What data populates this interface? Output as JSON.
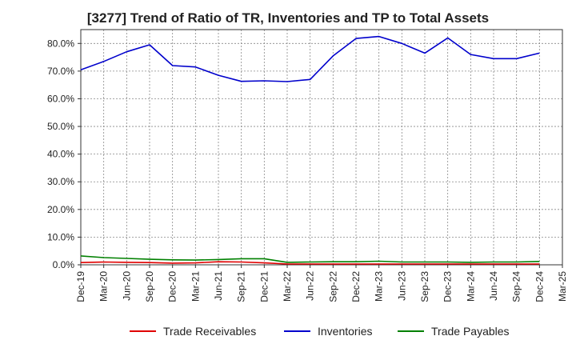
{
  "chart_data": {
    "type": "line",
    "title": "[3277]  Trend of Ratio of TR, Inventories and TP to Total Assets",
    "xlabel": "",
    "ylabel": "",
    "ylim": [
      0,
      85
    ],
    "y_ticks": [
      0,
      10,
      20,
      30,
      40,
      50,
      60,
      70,
      80
    ],
    "y_tick_labels": [
      "0.0%",
      "10.0%",
      "20.0%",
      "30.0%",
      "40.0%",
      "50.0%",
      "60.0%",
      "70.0%",
      "80.0%"
    ],
    "x": [
      "Dec-19",
      "Mar-20",
      "Jun-20",
      "Sep-20",
      "Dec-20",
      "Mar-21",
      "Jun-21",
      "Sep-21",
      "Dec-21",
      "Mar-22",
      "Jun-22",
      "Sep-22",
      "Dec-22",
      "Mar-23",
      "Jun-23",
      "Sep-23",
      "Dec-23",
      "Mar-24",
      "Jun-24",
      "Sep-24",
      "Dec-24"
    ],
    "x_tick_labels": [
      "Dec-19",
      "Mar-20",
      "Jun-20",
      "Sep-20",
      "Dec-20",
      "Mar-21",
      "Jun-21",
      "Sep-21",
      "Dec-21",
      "Mar-22",
      "Jun-22",
      "Sep-22",
      "Dec-22",
      "Mar-23",
      "Jun-23",
      "Sep-23",
      "Dec-23",
      "Mar-24",
      "Jun-24",
      "Sep-24",
      "Dec-24",
      "Mar-25"
    ],
    "grid": true,
    "legend_position": "bottom",
    "series": [
      {
        "name": "Trade Receivables",
        "color": "#e00000",
        "values": [
          0.8,
          1.0,
          0.9,
          0.8,
          0.6,
          0.7,
          1.1,
          1.0,
          0.7,
          0.3,
          0.3,
          0.3,
          0.3,
          0.3,
          0.3,
          0.3,
          0.3,
          0.3,
          0.3,
          0.3,
          0.3
        ]
      },
      {
        "name": "Inventories",
        "color": "#0000cc",
        "values": [
          70.5,
          73.5,
          77.0,
          79.5,
          72.0,
          71.5,
          68.5,
          66.3,
          66.5,
          66.2,
          67.0,
          75.5,
          81.8,
          82.5,
          80.0,
          76.5,
          82.0,
          76.0,
          74.5,
          74.5,
          76.5
        ]
      },
      {
        "name": "Trade Payables",
        "color": "#008000",
        "values": [
          3.2,
          2.6,
          2.3,
          2.0,
          1.8,
          1.7,
          1.9,
          2.2,
          2.2,
          0.9,
          1.0,
          1.1,
          1.1,
          1.3,
          1.0,
          1.0,
          1.0,
          0.9,
          1.0,
          1.0,
          1.2
        ]
      }
    ]
  }
}
